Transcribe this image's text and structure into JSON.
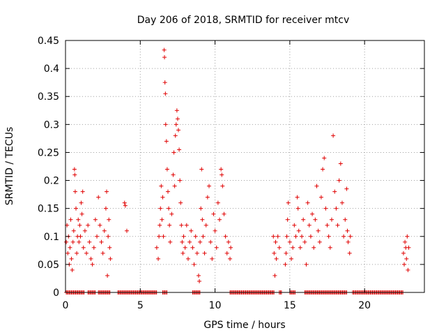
{
  "chart_data": {
    "type": "scatter",
    "title": "Day 206 of 2018, SRMTID for receiver mtcv",
    "xlabel": "GPS time / hours",
    "ylabel": "SRMTID / TECUs",
    "xlim": [
      0,
      24
    ],
    "ylim": [
      0,
      0.45
    ],
    "xticks": [
      0,
      5,
      10,
      15,
      20
    ],
    "xtick_labels": [
      "0",
      "5",
      "10",
      "15",
      "20"
    ],
    "yticks": [
      0,
      0.05,
      0.1,
      0.15,
      0.2,
      0.25,
      0.3,
      0.35,
      0.4,
      0.45
    ],
    "ytick_labels": [
      "0",
      "0.05",
      "0.1",
      "0.15",
      "0.2",
      "0.25",
      "0.3",
      "0.35",
      "0.4",
      "0.45"
    ],
    "grid": true,
    "marker": "plus",
    "marker_color": "#e00000",
    "series": [
      {
        "name": "SRMTID",
        "points": [
          [
            0.05,
            0.09
          ],
          [
            0.1,
            0.12
          ],
          [
            0.15,
            0.07
          ],
          [
            0.2,
            0.1
          ],
          [
            0.25,
            0.05
          ],
          [
            0.3,
            0.08
          ],
          [
            0.35,
            0.13
          ],
          [
            0.4,
            0.06
          ],
          [
            0.45,
            0.04
          ],
          [
            0.5,
            0.09
          ],
          [
            0.55,
            0.11
          ],
          [
            0.6,
            0.22
          ],
          [
            0.62,
            0.21
          ],
          [
            0.65,
            0.18
          ],
          [
            0.7,
            0.15
          ],
          [
            0.75,
            0.07
          ],
          [
            0.8,
            0.1
          ],
          [
            0.85,
            0.13
          ],
          [
            0.9,
            0.09
          ],
          [
            0.95,
            0.12
          ],
          [
            1.0,
            0.1
          ],
          [
            1.05,
            0.16
          ],
          [
            1.1,
            0.14
          ],
          [
            1.15,
            0.18
          ],
          [
            1.2,
            0.08
          ],
          [
            1.3,
            0.11
          ],
          [
            1.4,
            0.07
          ],
          [
            1.5,
            0.12
          ],
          [
            1.6,
            0.09
          ],
          [
            1.7,
            0.06
          ],
          [
            1.8,
            0.05
          ],
          [
            1.9,
            0.08
          ],
          [
            2.0,
            0.13
          ],
          [
            2.1,
            0.1
          ],
          [
            2.2,
            0.17
          ],
          [
            2.3,
            0.12
          ],
          [
            2.4,
            0.09
          ],
          [
            2.5,
            0.07
          ],
          [
            2.6,
            0.11
          ],
          [
            2.7,
            0.15
          ],
          [
            2.75,
            0.18
          ],
          [
            2.8,
            0.03
          ],
          [
            2.85,
            0.1
          ],
          [
            2.9,
            0.13
          ],
          [
            2.95,
            0.08
          ],
          [
            3.0,
            0.06
          ],
          [
            3.95,
            0.16
          ],
          [
            4.0,
            0.155
          ],
          [
            4.1,
            0.11
          ],
          [
            6.1,
            0.08
          ],
          [
            6.2,
            0.06
          ],
          [
            6.25,
            0.1
          ],
          [
            6.3,
            0.12
          ],
          [
            6.35,
            0.15
          ],
          [
            6.4,
            0.19
          ],
          [
            6.45,
            0.13
          ],
          [
            6.5,
            0.17
          ],
          [
            6.55,
            0.1
          ],
          [
            6.6,
            0.433
          ],
          [
            6.62,
            0.42
          ],
          [
            6.65,
            0.375
          ],
          [
            6.68,
            0.355
          ],
          [
            6.7,
            0.3
          ],
          [
            6.75,
            0.27
          ],
          [
            6.8,
            0.22
          ],
          [
            6.85,
            0.18
          ],
          [
            6.9,
            0.15
          ],
          [
            6.95,
            0.12
          ],
          [
            7.0,
            0.09
          ],
          [
            7.1,
            0.14
          ],
          [
            7.2,
            0.21
          ],
          [
            7.25,
            0.25
          ],
          [
            7.3,
            0.19
          ],
          [
            7.35,
            0.28
          ],
          [
            7.4,
            0.3
          ],
          [
            7.45,
            0.325
          ],
          [
            7.5,
            0.31
          ],
          [
            7.55,
            0.29
          ],
          [
            7.6,
            0.255
          ],
          [
            7.65,
            0.2
          ],
          [
            7.7,
            0.16
          ],
          [
            7.75,
            0.12
          ],
          [
            7.8,
            0.09
          ],
          [
            7.85,
            0.07
          ],
          [
            7.9,
            0.1
          ],
          [
            8.0,
            0.08
          ],
          [
            8.1,
            0.12
          ],
          [
            8.2,
            0.06
          ],
          [
            8.3,
            0.09
          ],
          [
            8.4,
            0.11
          ],
          [
            8.5,
            0.08
          ],
          [
            8.6,
            0.05
          ],
          [
            8.7,
            0.1
          ],
          [
            8.8,
            0.07
          ],
          [
            8.9,
            0.03
          ],
          [
            8.95,
            0.02
          ],
          [
            9.0,
            0.09
          ],
          [
            9.05,
            0.15
          ],
          [
            9.1,
            0.22
          ],
          [
            9.15,
            0.13
          ],
          [
            9.2,
            0.1
          ],
          [
            9.3,
            0.07
          ],
          [
            9.4,
            0.12
          ],
          [
            9.5,
            0.17
          ],
          [
            9.6,
            0.19
          ],
          [
            9.7,
            0.09
          ],
          [
            9.8,
            0.06
          ],
          [
            9.9,
            0.14
          ],
          [
            10.0,
            0.11
          ],
          [
            10.1,
            0.08
          ],
          [
            10.2,
            0.16
          ],
          [
            10.3,
            0.13
          ],
          [
            10.4,
            0.22
          ],
          [
            10.45,
            0.21
          ],
          [
            10.5,
            0.19
          ],
          [
            10.6,
            0.14
          ],
          [
            10.7,
            0.1
          ],
          [
            10.8,
            0.07
          ],
          [
            10.9,
            0.09
          ],
          [
            11.0,
            0.06
          ],
          [
            11.05,
            0.08
          ],
          [
            13.9,
            0.1
          ],
          [
            13.95,
            0.07
          ],
          [
            14.0,
            0.03
          ],
          [
            14.05,
            0.09
          ],
          [
            14.1,
            0.06
          ],
          [
            14.2,
            0.1
          ],
          [
            14.3,
            0.08
          ],
          [
            14.7,
            0.05
          ],
          [
            14.75,
            0.07
          ],
          [
            14.8,
            0.1
          ],
          [
            14.85,
            0.13
          ],
          [
            14.9,
            0.16
          ],
          [
            15.0,
            0.09
          ],
          [
            15.1,
            0.06
          ],
          [
            15.2,
            0.08
          ],
          [
            15.3,
            0.12
          ],
          [
            15.4,
            0.1
          ],
          [
            15.5,
            0.17
          ],
          [
            15.55,
            0.15
          ],
          [
            15.6,
            0.11
          ],
          [
            15.7,
            0.08
          ],
          [
            15.8,
            0.1
          ],
          [
            15.9,
            0.13
          ],
          [
            16.0,
            0.09
          ],
          [
            16.1,
            0.05
          ],
          [
            16.2,
            0.16
          ],
          [
            16.3,
            0.12
          ],
          [
            16.4,
            0.1
          ],
          [
            16.5,
            0.14
          ],
          [
            16.6,
            0.08
          ],
          [
            16.7,
            0.13
          ],
          [
            16.8,
            0.19
          ],
          [
            16.9,
            0.11
          ],
          [
            17.0,
            0.09
          ],
          [
            17.1,
            0.17
          ],
          [
            17.2,
            0.22
          ],
          [
            17.3,
            0.24
          ],
          [
            17.4,
            0.15
          ],
          [
            17.5,
            0.12
          ],
          [
            17.6,
            0.1
          ],
          [
            17.7,
            0.08
          ],
          [
            17.8,
            0.13
          ],
          [
            17.9,
            0.28
          ],
          [
            18.0,
            0.18
          ],
          [
            18.1,
            0.15
          ],
          [
            18.2,
            0.12
          ],
          [
            18.3,
            0.2
          ],
          [
            18.4,
            0.23
          ],
          [
            18.5,
            0.16
          ],
          [
            18.6,
            0.1
          ],
          [
            18.7,
            0.13
          ],
          [
            18.8,
            0.185
          ],
          [
            18.85,
            0.11
          ],
          [
            18.9,
            0.09
          ],
          [
            19.0,
            0.07
          ],
          [
            19.05,
            0.1
          ],
          [
            22.6,
            0.07
          ],
          [
            22.65,
            0.05
          ],
          [
            22.7,
            0.09
          ],
          [
            22.75,
            0.08
          ],
          [
            22.8,
            0.06
          ],
          [
            22.85,
            0.1
          ],
          [
            22.9,
            0.04
          ],
          [
            22.95,
            0.08
          ]
        ]
      }
    ],
    "zero_ranges": [
      [
        0.05,
        1.3
      ],
      [
        1.5,
        2.0
      ],
      [
        2.2,
        2.5
      ],
      [
        2.55,
        3.0
      ],
      [
        3.5,
        6.1
      ],
      [
        6.5,
        6.8
      ],
      [
        8.5,
        9.0
      ],
      [
        11.0,
        14.0
      ],
      [
        14.3,
        14.5
      ],
      [
        15.0,
        15.4
      ],
      [
        16.0,
        18.8
      ],
      [
        19.2,
        22.6
      ]
    ]
  }
}
